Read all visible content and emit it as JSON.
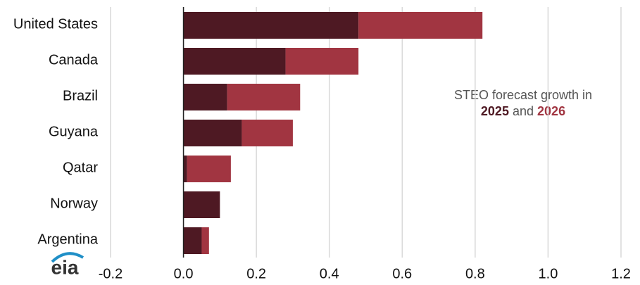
{
  "chart_data": {
    "type": "stacked-bar-horizontal",
    "categories": [
      "United States",
      "Canada",
      "Brazil",
      "Guyana",
      "Qatar",
      "Norway",
      "Argentina"
    ],
    "series": [
      {
        "name": "2025",
        "color": "#4e1923",
        "values": [
          0.48,
          0.28,
          0.12,
          0.16,
          0.01,
          0.1,
          0.05
        ]
      },
      {
        "name": "2026",
        "color": "#a13541",
        "values": [
          0.34,
          0.2,
          0.2,
          0.14,
          0.12,
          0,
          0.02
        ]
      }
    ],
    "xlim": [
      -0.2,
      1.2
    ],
    "xticks": [
      -0.2,
      {
        "value": 0,
        "label": "0.0"
      },
      0.2,
      0.4,
      0.6,
      0.8,
      {
        "value": 1,
        "label": "1.0"
      },
      1.2
    ],
    "grid": true,
    "annotation": {
      "text": "STEO forecast growth in",
      "connector": "and"
    },
    "logo": "eia"
  }
}
